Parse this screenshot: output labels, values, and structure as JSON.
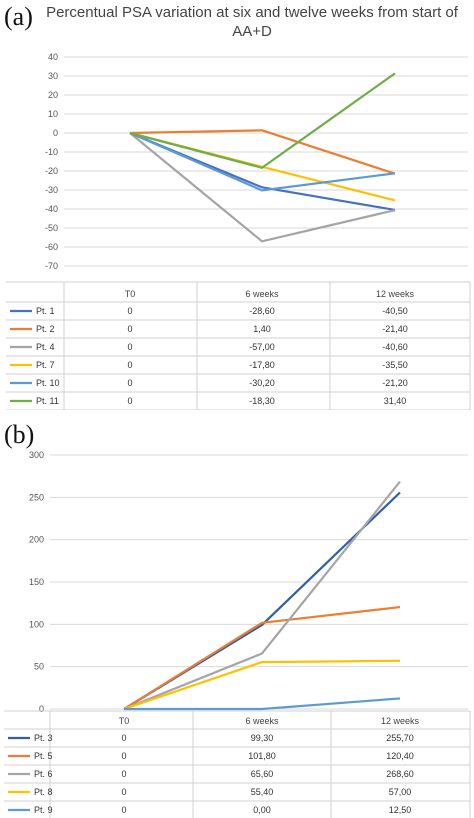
{
  "panel_a_letter": "(a)",
  "panel_b_letter": "(b)",
  "chart_data": [
    {
      "type": "line",
      "title": "Percentual PSA variation at six and twelve weeks from start of AA+D",
      "categories": [
        "T0",
        "6 weeks",
        "12 weeks"
      ],
      "ylim": [
        -70,
        40
      ],
      "yticks": [
        40,
        30,
        20,
        10,
        0,
        -10,
        -20,
        -30,
        -40,
        -50,
        -60,
        -70
      ],
      "grid": true,
      "legend": "table-below",
      "series": [
        {
          "name": "Pt. 1",
          "values": [
            0,
            -28.6,
            -40.5
          ],
          "labels": [
            "0",
            "-28,60",
            "-40,50"
          ],
          "color": "#4472c4"
        },
        {
          "name": "Pt. 2",
          "values": [
            0,
            1.4,
            -21.4
          ],
          "labels": [
            "0",
            "1,40",
            "-21,40"
          ],
          "color": "#ed7d31"
        },
        {
          "name": "Pt. 4",
          "values": [
            0,
            -57.0,
            -40.6
          ],
          "labels": [
            "0",
            "-57,00",
            "-40,60"
          ],
          "color": "#a5a5a5"
        },
        {
          "name": "Pt. 7",
          "values": [
            0,
            -17.8,
            -35.5
          ],
          "labels": [
            "0",
            "-17,80",
            "-35,50"
          ],
          "color": "#ffc000"
        },
        {
          "name": "Pt. 10",
          "values": [
            0,
            -30.2,
            -21.2
          ],
          "labels": [
            "0",
            "-30,20",
            "-21,20"
          ],
          "color": "#5b9bd5"
        },
        {
          "name": "Pt. 11",
          "values": [
            0,
            -18.3,
            31.4
          ],
          "labels": [
            "0",
            "-18,30",
            "31,40"
          ],
          "color": "#70ad47"
        }
      ]
    },
    {
      "type": "line",
      "title": "",
      "categories": [
        "T0",
        "6 weeks",
        "12 weeks"
      ],
      "ylim": [
        0,
        300
      ],
      "yticks": [
        300,
        250,
        200,
        150,
        100,
        50,
        0
      ],
      "grid": true,
      "legend": "table-below",
      "series": [
        {
          "name": "Pt. 3",
          "values": [
            0,
            99.3,
            255.7
          ],
          "labels": [
            "0",
            "99,30",
            "255,70"
          ],
          "color": "#2e5fa8"
        },
        {
          "name": "Pt. 5",
          "values": [
            0,
            101.8,
            120.4
          ],
          "labels": [
            "0",
            "101,80",
            "120,40"
          ],
          "color": "#ed7d31"
        },
        {
          "name": "Pt. 6",
          "values": [
            0,
            65.6,
            268.6
          ],
          "labels": [
            "0",
            "65,60",
            "268,60"
          ],
          "color": "#a5a5a5"
        },
        {
          "name": "Pt. 8",
          "values": [
            0,
            55.4,
            57.0
          ],
          "labels": [
            "0",
            "55,40",
            "57,00"
          ],
          "color": "#ffc000"
        },
        {
          "name": "Pt. 9",
          "values": [
            0,
            0.0,
            12.5
          ],
          "labels": [
            "0",
            "0,00",
            "12,50"
          ],
          "color": "#5b9bd5"
        }
      ]
    }
  ]
}
